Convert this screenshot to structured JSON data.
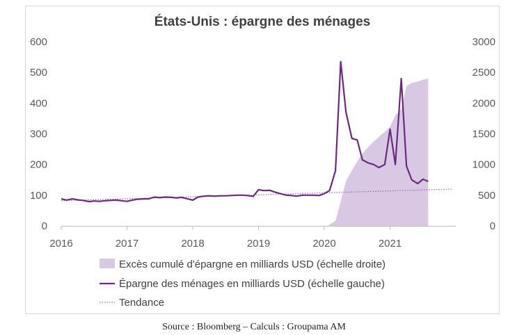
{
  "chart_data": {
    "type": "line",
    "title": "États-Unis : épargne des ménages",
    "x_ticks": [
      "2016",
      "2017",
      "2018",
      "2019",
      "2020",
      "2021"
    ],
    "x_range": [
      2016,
      2022
    ],
    "y_left": {
      "range": [
        0,
        600
      ],
      "ticks": [
        "0",
        "100",
        "200",
        "300",
        "400",
        "500",
        "600"
      ]
    },
    "y_right": {
      "range": [
        0,
        3000
      ],
      "ticks": [
        "0",
        "500",
        "1000",
        "1500",
        "2000",
        "2500",
        "3000"
      ]
    },
    "grid": false,
    "legend_position": "bottom",
    "colors": {
      "area": "#d9c8e3",
      "line": "#6a2a7e",
      "trend": "#9c6bb0"
    },
    "series": [
      {
        "name": "Excès cumulé d'épargne en milliards USD (échelle droite)",
        "kind": "area",
        "axis": "right",
        "points": [
          [
            2019.95,
            0
          ],
          [
            2020.05,
            0
          ],
          [
            2020.17,
            80
          ],
          [
            2020.25,
            400
          ],
          [
            2020.33,
            730
          ],
          [
            2020.42,
            900
          ],
          [
            2020.5,
            1050
          ],
          [
            2020.58,
            1180
          ],
          [
            2020.67,
            1290
          ],
          [
            2020.75,
            1370
          ],
          [
            2020.83,
            1450
          ],
          [
            2020.92,
            1530
          ],
          [
            2021.0,
            1620
          ],
          [
            2021.08,
            1800
          ],
          [
            2021.17,
            1900
          ],
          [
            2021.25,
            2280
          ],
          [
            2021.33,
            2330
          ],
          [
            2021.42,
            2350
          ],
          [
            2021.5,
            2380
          ],
          [
            2021.58,
            2400
          ]
        ]
      },
      {
        "name": "Épargne des ménages en milliards USD (échelle gauche)",
        "kind": "line",
        "axis": "left",
        "points": [
          [
            2016.0,
            88
          ],
          [
            2016.08,
            84
          ],
          [
            2016.17,
            88
          ],
          [
            2016.25,
            85
          ],
          [
            2016.33,
            83
          ],
          [
            2016.42,
            79
          ],
          [
            2016.5,
            81
          ],
          [
            2016.58,
            80
          ],
          [
            2016.67,
            82
          ],
          [
            2016.75,
            83
          ],
          [
            2016.83,
            84
          ],
          [
            2016.92,
            82
          ],
          [
            2017.0,
            80
          ],
          [
            2017.08,
            84
          ],
          [
            2017.17,
            87
          ],
          [
            2017.25,
            88
          ],
          [
            2017.33,
            88
          ],
          [
            2017.42,
            94
          ],
          [
            2017.5,
            92
          ],
          [
            2017.58,
            94
          ],
          [
            2017.67,
            93
          ],
          [
            2017.75,
            91
          ],
          [
            2017.83,
            93
          ],
          [
            2017.92,
            88
          ],
          [
            2018.0,
            84
          ],
          [
            2018.08,
            94
          ],
          [
            2018.17,
            97
          ],
          [
            2018.25,
            98
          ],
          [
            2018.33,
            97
          ],
          [
            2018.42,
            98
          ],
          [
            2018.5,
            98
          ],
          [
            2018.58,
            99
          ],
          [
            2018.67,
            100
          ],
          [
            2018.75,
            100
          ],
          [
            2018.83,
            99
          ],
          [
            2018.92,
            96
          ],
          [
            2019.0,
            118
          ],
          [
            2019.08,
            115
          ],
          [
            2019.17,
            116
          ],
          [
            2019.25,
            110
          ],
          [
            2019.33,
            105
          ],
          [
            2019.42,
            100
          ],
          [
            2019.5,
            99
          ],
          [
            2019.58,
            97
          ],
          [
            2019.67,
            100
          ],
          [
            2019.75,
            100
          ],
          [
            2019.83,
            100
          ],
          [
            2019.92,
            99
          ],
          [
            2020.0,
            105
          ],
          [
            2020.08,
            115
          ],
          [
            2020.17,
            180
          ],
          [
            2020.25,
            535
          ],
          [
            2020.33,
            370
          ],
          [
            2020.42,
            285
          ],
          [
            2020.5,
            280
          ],
          [
            2020.58,
            215
          ],
          [
            2020.67,
            205
          ],
          [
            2020.75,
            200
          ],
          [
            2020.83,
            190
          ],
          [
            2020.92,
            200
          ],
          [
            2021.0,
            315
          ],
          [
            2021.08,
            200
          ],
          [
            2021.17,
            480
          ],
          [
            2021.25,
            195
          ],
          [
            2021.33,
            150
          ],
          [
            2021.42,
            138
          ],
          [
            2021.5,
            152
          ],
          [
            2021.58,
            145
          ]
        ]
      },
      {
        "name": "Tendance",
        "kind": "trend",
        "axis": "left",
        "points": [
          [
            2016.0,
            82
          ],
          [
            2021.95,
            120
          ]
        ]
      }
    ]
  },
  "source": "Source : Bloomberg – Calculs : Groupama AM"
}
